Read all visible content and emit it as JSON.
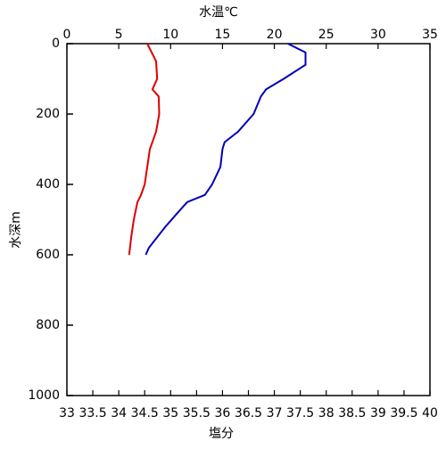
{
  "chart_data": {
    "type": "line",
    "x_label": "塩分",
    "x_label_color": "#cc0000",
    "x2_label": "水温℃",
    "x2_label_color": "#0000aa",
    "y_label": "水深m",
    "xlim": [
      33,
      40
    ],
    "xticks": [
      33,
      33.5,
      34,
      34.5,
      35,
      35.5,
      36,
      36.5,
      37,
      37.5,
      38,
      38.5,
      39,
      39.5,
      40
    ],
    "x2lim": [
      0,
      35
    ],
    "x2ticks": [
      0,
      5,
      10,
      15,
      20,
      25,
      30,
      35
    ],
    "ylim": [
      0,
      1000
    ],
    "yticks": [
      0,
      200,
      400,
      600,
      800,
      1000
    ],
    "y_inverted": true,
    "series": [
      {
        "color": "#0000bb",
        "axis": "x2",
        "x": [
          21.3,
          23,
          23,
          20.9,
          19.2,
          18.7,
          18,
          16.5,
          15.2,
          15,
          14.8,
          14,
          13.3,
          11.6,
          10.7,
          9.5,
          8.7,
          7.9,
          7.6
        ],
        "y": [
          0,
          25,
          60,
          100,
          130,
          150,
          200,
          250,
          280,
          300,
          350,
          400,
          430,
          450,
          480,
          520,
          550,
          580,
          600
        ]
      },
      {
        "color": "#dd0000",
        "x": [
          34.55,
          34.72,
          34.74,
          34.65,
          34.77,
          34.78,
          34.72,
          34.6,
          34.55,
          34.5,
          34.43,
          34.36,
          34.29,
          34.24,
          34.2
        ],
        "y": [
          0,
          50,
          100,
          130,
          150,
          200,
          250,
          300,
          350,
          400,
          430,
          450,
          500,
          550,
          600
        ]
      }
    ]
  }
}
